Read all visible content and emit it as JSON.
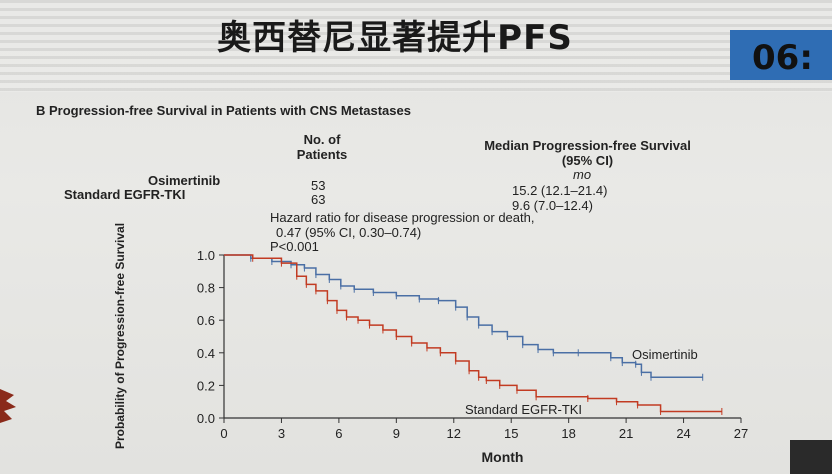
{
  "slide": {
    "title": "奥西替尼显著提升PFS",
    "time": "06:"
  },
  "panel": {
    "title": "B  Progression-free Survival in Patients with CNS Metastases",
    "col_patients": [
      "No. of",
      "Patients"
    ],
    "col_median": [
      "Median Progression-free Survival",
      "(95% CI)"
    ],
    "units": "mo",
    "rows": [
      {
        "label": "Osimertinib",
        "n": "53",
        "median": "15.2 (12.1–21.4)"
      },
      {
        "label": "Standard EGFR-TKI",
        "n": "63",
        "median": "9.6 (7.0–12.4)"
      }
    ],
    "hazard": [
      "Hazard ratio for disease progression or death,",
      "0.47 (95% CI, 0.30–0.74)",
      "P<0.001"
    ]
  },
  "chart_data": {
    "type": "line",
    "xlabel": "Month",
    "ylabel": "Probability of Progression-free Survival",
    "xlim": [
      0,
      27
    ],
    "ylim": [
      0,
      1.0
    ],
    "xticks": [
      0,
      3,
      6,
      9,
      12,
      15,
      18,
      21,
      24,
      27
    ],
    "yticks": [
      0.0,
      0.2,
      0.4,
      0.6,
      0.8,
      1.0
    ],
    "ytick_labels": [
      "0.0",
      "0.2",
      "0.4",
      "0.6",
      "0.8",
      "1.0"
    ],
    "series": [
      {
        "name": "Osimertinib",
        "color": "#4a6fa5",
        "x": [
          0,
          1.4,
          2.5,
          3.5,
          4.2,
          4.8,
          5.5,
          6.1,
          6.8,
          7.8,
          9.0,
          10.2,
          11.2,
          12.1,
          12.7,
          13.3,
          14.0,
          14.8,
          15.6,
          16.4,
          17.2,
          18.5,
          20.2,
          20.8,
          21.5,
          21.8,
          22.3,
          25.0
        ],
        "y": [
          1.0,
          0.98,
          0.96,
          0.94,
          0.92,
          0.88,
          0.85,
          0.81,
          0.79,
          0.77,
          0.75,
          0.73,
          0.72,
          0.68,
          0.62,
          0.57,
          0.53,
          0.5,
          0.45,
          0.42,
          0.4,
          0.4,
          0.37,
          0.34,
          0.33,
          0.28,
          0.25,
          0.25
        ]
      },
      {
        "name": "Standard EGFR-TKI",
        "color": "#c23b22",
        "x": [
          0,
          1.5,
          3.0,
          3.8,
          4.3,
          4.8,
          5.4,
          5.9,
          6.4,
          7.0,
          7.6,
          8.3,
          9.0,
          9.8,
          10.6,
          11.3,
          12.1,
          12.8,
          13.3,
          13.7,
          14.4,
          15.3,
          16.3,
          19.0,
          20.5,
          21.6,
          22.8,
          26.0
        ],
        "y": [
          1.0,
          0.98,
          0.95,
          0.87,
          0.82,
          0.78,
          0.72,
          0.66,
          0.62,
          0.6,
          0.57,
          0.54,
          0.5,
          0.46,
          0.43,
          0.4,
          0.35,
          0.29,
          0.25,
          0.23,
          0.2,
          0.17,
          0.13,
          0.12,
          0.1,
          0.08,
          0.04,
          0.04
        ]
      }
    ],
    "grid": false,
    "legend": "inline labels"
  }
}
